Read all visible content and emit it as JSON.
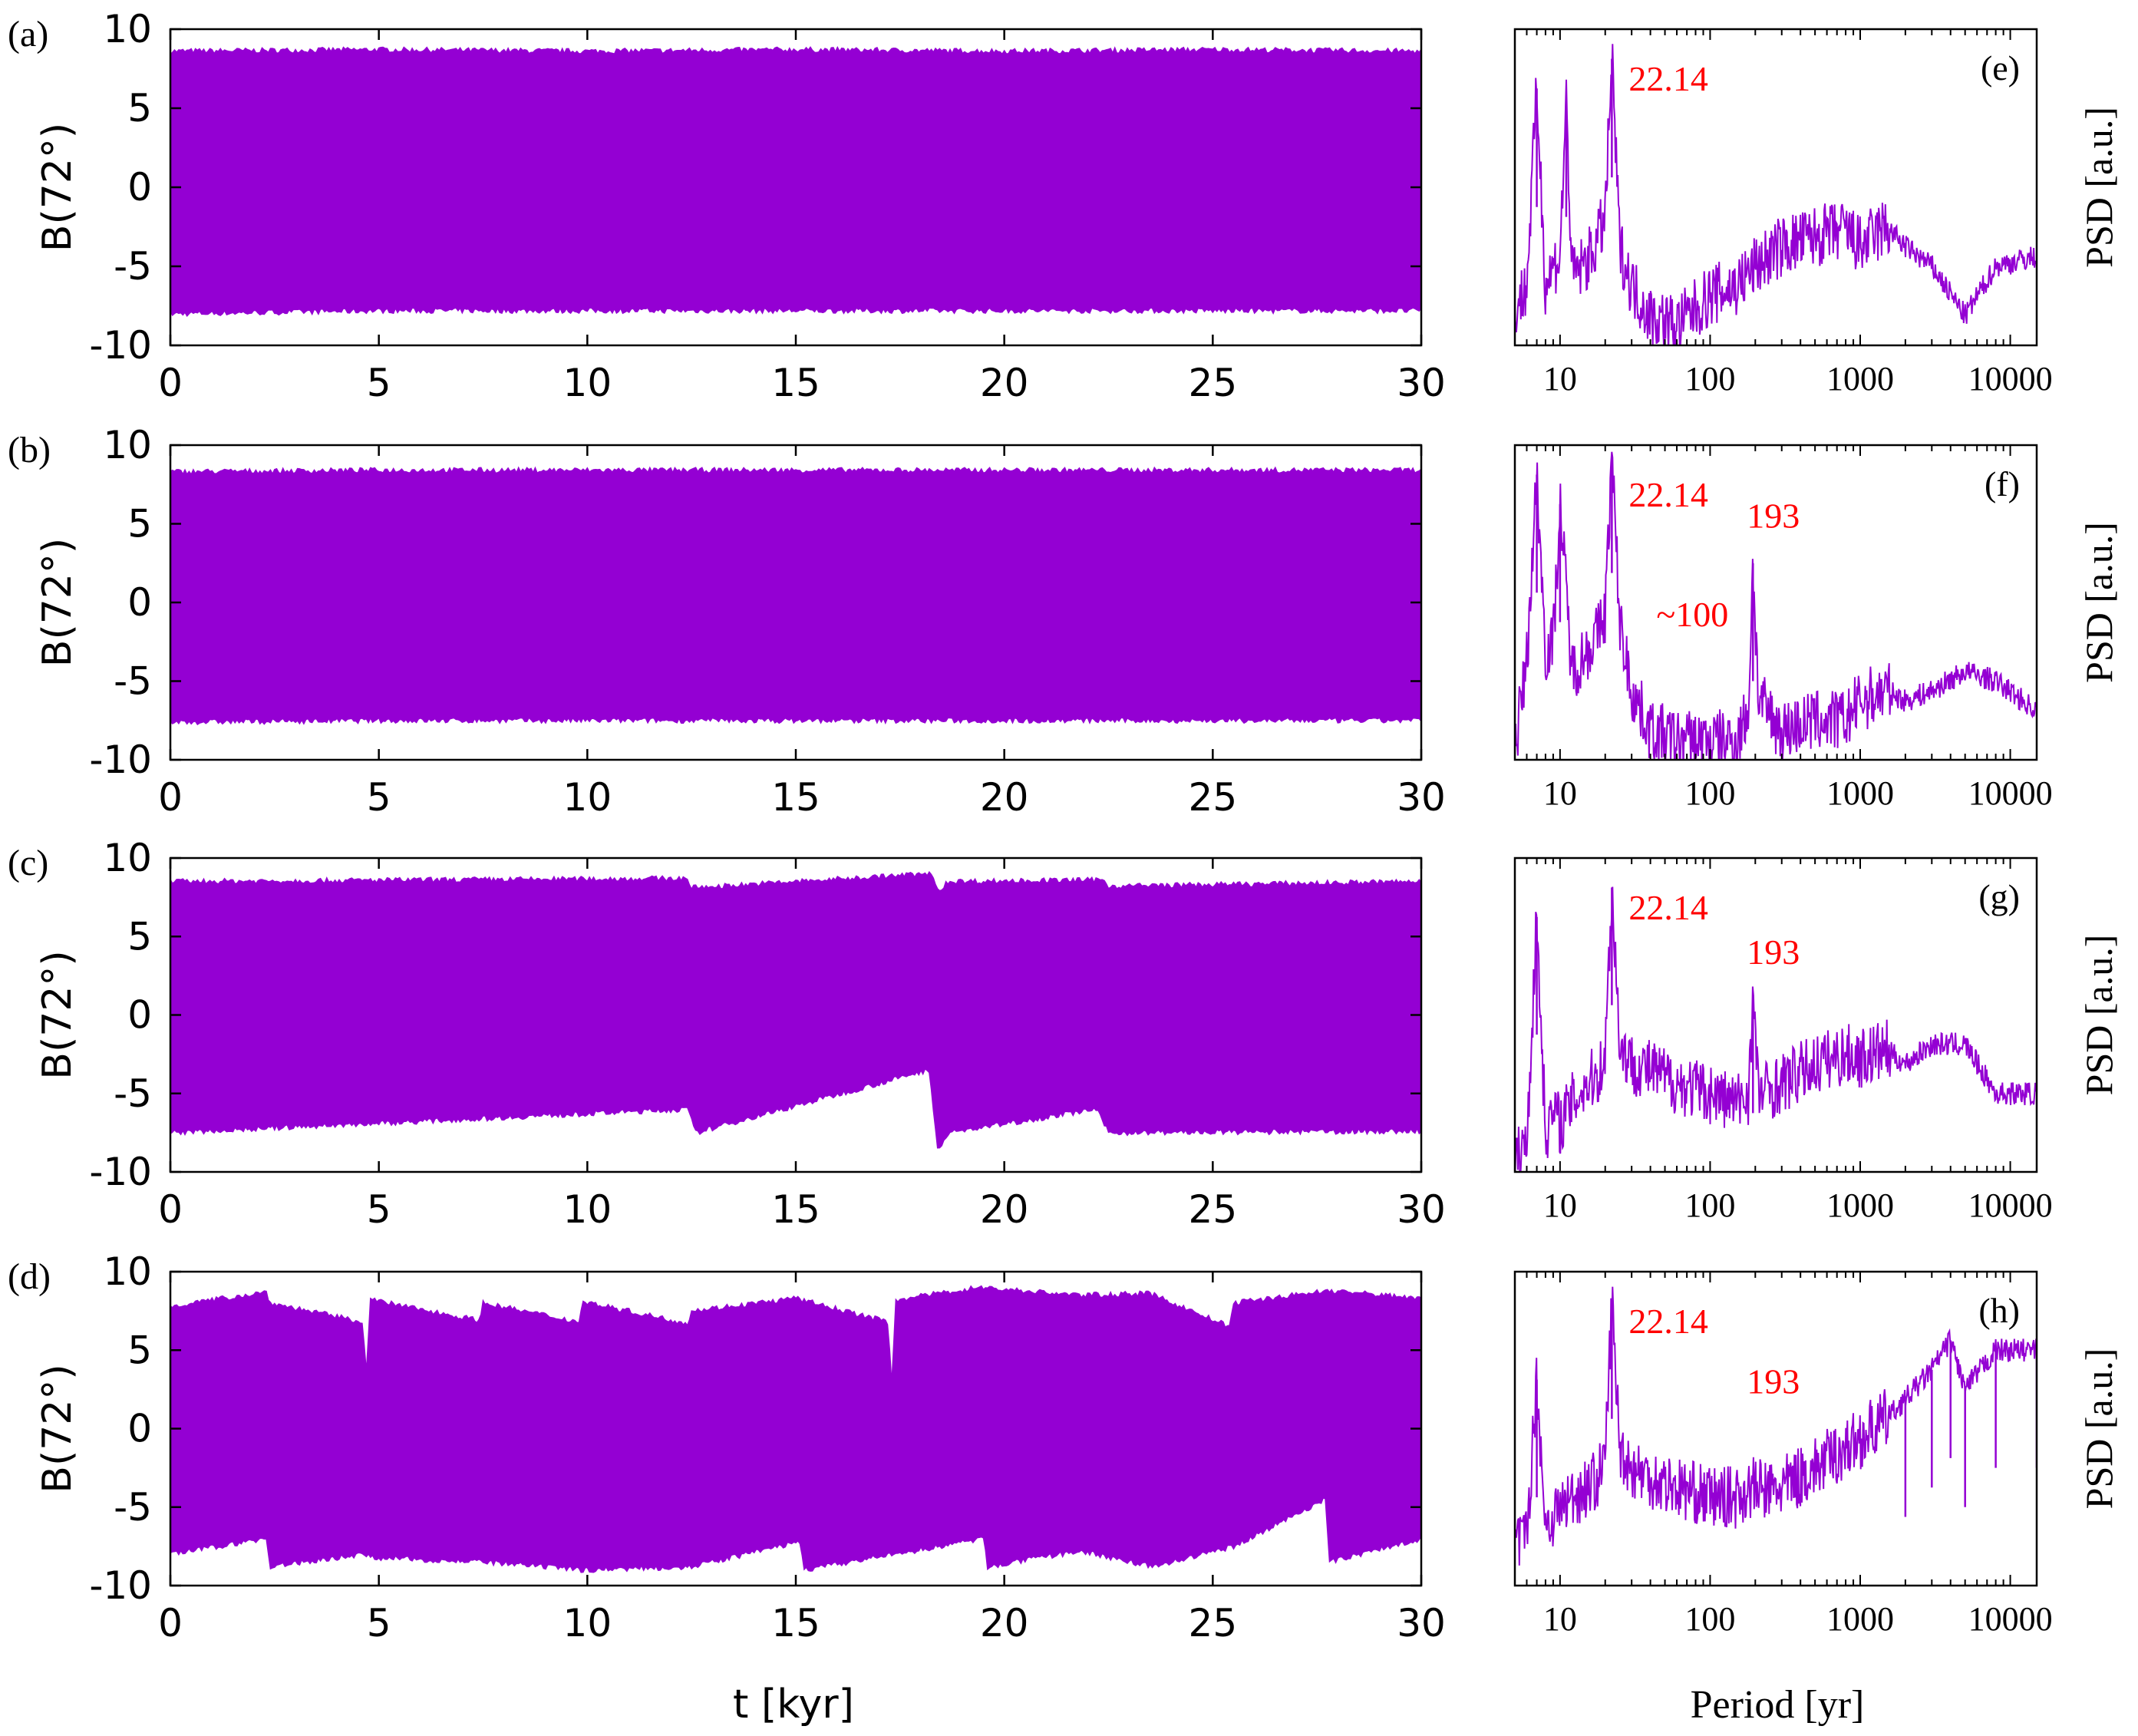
{
  "colors": {
    "signal": "#9400d3",
    "annotation": "#ff0000",
    "axis": "#000000",
    "background": "#ffffff"
  },
  "xlabel_time": "t [kyr]",
  "xlabel_period": "Period [yr]",
  "chart_data": [
    {
      "type": "line",
      "panel_label": "(a)",
      "ylabel": "B(72°)",
      "xlabel": "t [kyr]",
      "xlim": [
        0,
        30
      ],
      "ylim": [
        -10,
        10
      ],
      "xticks": [
        "0",
        "5",
        "10",
        "15",
        "20",
        "25",
        "30"
      ],
      "yticks": [
        "10",
        "5",
        "0",
        "-5",
        "-10"
      ],
      "series": [
        {
          "envelope_upper": [
            [
              0,
              8.6
            ],
            [
              5,
              8.7
            ],
            [
              10,
              8.6
            ],
            [
              15,
              8.7
            ],
            [
              20,
              8.6
            ],
            [
              25,
              8.7
            ],
            [
              30,
              8.6
            ]
          ],
          "envelope_lower": [
            [
              0,
              -8.0
            ],
            [
              5,
              -7.8
            ],
            [
              10,
              -7.8
            ],
            [
              15,
              -7.8
            ],
            [
              20,
              -7.8
            ],
            [
              25,
              -7.8
            ],
            [
              30,
              -7.8
            ]
          ]
        }
      ]
    },
    {
      "type": "line",
      "panel_label": "(b)",
      "ylabel": "B(72°)",
      "xlabel": "t [kyr]",
      "xlim": [
        0,
        30
      ],
      "ylim": [
        -10,
        10
      ],
      "xticks": [
        "0",
        "5",
        "10",
        "15",
        "20",
        "25",
        "30"
      ],
      "yticks": [
        "10",
        "5",
        "0",
        "-5",
        "-10"
      ],
      "series": [
        {
          "envelope_upper": [
            [
              0,
              8.3
            ],
            [
              5,
              8.4
            ],
            [
              10,
              8.4
            ],
            [
              15,
              8.4
            ],
            [
              20,
              8.4
            ],
            [
              25,
              8.4
            ],
            [
              30,
              8.4
            ]
          ],
          "envelope_lower": [
            [
              0,
              -7.6
            ],
            [
              5,
              -7.5
            ],
            [
              10,
              -7.5
            ],
            [
              15,
              -7.5
            ],
            [
              20,
              -7.5
            ],
            [
              25,
              -7.5
            ],
            [
              30,
              -7.5
            ]
          ]
        }
      ]
    },
    {
      "type": "line",
      "panel_label": "(c)",
      "ylabel": "B(72°)",
      "xlabel": "t [kyr]",
      "xlim": [
        0,
        30
      ],
      "ylim": [
        -10,
        10
      ],
      "xticks": [
        "0",
        "5",
        "10",
        "15",
        "20",
        "25",
        "30"
      ],
      "yticks": [
        "10",
        "5",
        "0",
        "-5",
        "-10"
      ],
      "series": [
        {
          "envelope_upper": [
            [
              0,
              8.5
            ],
            [
              12.4,
              8.7
            ],
            [
              12.5,
              8.1
            ],
            [
              18.2,
              9.0
            ],
            [
              18.5,
              7.8
            ],
            [
              18.6,
              8.5
            ],
            [
              22.4,
              8.6
            ],
            [
              22.5,
              8.2
            ],
            [
              30,
              8.5
            ]
          ],
          "envelope_lower": [
            [
              0,
              -7.5
            ],
            [
              12.4,
              -6.0
            ],
            [
              12.6,
              -7.5
            ],
            [
              18.2,
              -3.5
            ],
            [
              18.4,
              -8.5
            ],
            [
              18.7,
              -7.5
            ],
            [
              22.2,
              -6.0
            ],
            [
              22.5,
              -7.5
            ],
            [
              30,
              -7.4
            ]
          ]
        }
      ]
    },
    {
      "type": "line",
      "panel_label": "(d)",
      "ylabel": "B(72°)",
      "xlabel": "t [kyr]",
      "xlim": [
        0,
        30
      ],
      "ylim": [
        -10,
        10
      ],
      "xticks": [
        "0",
        "5",
        "10",
        "15",
        "20",
        "25",
        "30"
      ],
      "yticks": [
        "10",
        "5",
        "0",
        "-5",
        "-10"
      ],
      "series": [
        {
          "envelope_upper": [
            [
              0,
              7.8
            ],
            [
              2.3,
              8.7
            ],
            [
              2.4,
              8.0
            ],
            [
              4.6,
              6.8
            ],
            [
              4.7,
              3.8
            ],
            [
              4.8,
              8.2
            ],
            [
              7.4,
              6.9
            ],
            [
              7.5,
              8.0
            ],
            [
              9.8,
              6.8
            ],
            [
              9.9,
              8.1
            ],
            [
              12.4,
              6.7
            ],
            [
              12.5,
              7.5
            ],
            [
              15.0,
              8.3
            ],
            [
              17.2,
              6.8
            ],
            [
              17.3,
              3.0
            ],
            [
              17.4,
              8.2
            ],
            [
              19.4,
              9.0
            ],
            [
              21.8,
              8.5
            ],
            [
              23.5,
              8.6
            ],
            [
              25.4,
              6.5
            ],
            [
              25.5,
              8.0
            ],
            [
              27.8,
              8.8
            ],
            [
              30,
              8.3
            ]
          ],
          "envelope_lower": [
            [
              0,
              -8.0
            ],
            [
              2.3,
              -7.0
            ],
            [
              2.4,
              -8.8
            ],
            [
              4.6,
              -8.0
            ],
            [
              4.8,
              -8.2
            ],
            [
              7.5,
              -8.5
            ],
            [
              9.9,
              -9.0
            ],
            [
              12.5,
              -8.8
            ],
            [
              15.1,
              -7.2
            ],
            [
              15.2,
              -9.0
            ],
            [
              17.4,
              -8.0
            ],
            [
              19.5,
              -7.0
            ],
            [
              19.6,
              -8.8
            ],
            [
              21.8,
              -7.8
            ],
            [
              23.6,
              -8.8
            ],
            [
              25.5,
              -7.5
            ],
            [
              27.7,
              -4.5
            ],
            [
              27.8,
              -8.5
            ],
            [
              30,
              -7.0
            ]
          ]
        }
      ]
    },
    {
      "type": "line",
      "panel_label": "(e)",
      "ylabel": "PSD [a.u.]",
      "xlabel": "Period [yr]",
      "xscale": "log",
      "xlim": [
        5,
        15000
      ],
      "xticks": [
        "10",
        "100",
        "1000",
        "10000"
      ],
      "annotations": [
        {
          "text": "22.14",
          "x": 22.14
        }
      ],
      "series": [
        {
          "x": [
            5,
            6,
            7,
            8,
            9,
            10,
            11,
            12,
            14,
            16,
            18,
            20,
            22.14,
            25,
            30,
            40,
            60,
            100,
            150,
            200,
            300,
            500,
            800,
            1000,
            1500,
            2000,
            3000,
            5000,
            8000,
            15000
          ],
          "y": [
            -8.2,
            -7.0,
            3.0,
            -7.0,
            -6.0,
            -5.5,
            2.5,
            -6.5,
            -6.0,
            -5.5,
            -4.5,
            -3.5,
            4.5,
            -5.0,
            -7.0,
            -8.5,
            -9.0,
            -7.5,
            -7.0,
            -6.0,
            -5.0,
            -4.5,
            -4.2,
            -5.0,
            -4.0,
            -5.0,
            -6.0,
            -8.5,
            -6.0,
            -5.5
          ]
        }
      ]
    },
    {
      "type": "line",
      "panel_label": "(f)",
      "ylabel": "PSD [a.u.]",
      "xlabel": "Period [yr]",
      "xscale": "log",
      "xlim": [
        5,
        15000
      ],
      "xticks": [
        "10",
        "100",
        "1000",
        "10000"
      ],
      "annotations": [
        {
          "text": "22.14",
          "x": 22.14
        },
        {
          "text": "193",
          "x": 193
        },
        {
          "text": "~100",
          "x": 100
        }
      ],
      "series": [
        {
          "x": [
            5,
            6,
            7,
            8,
            9,
            10,
            12,
            15,
            18,
            20,
            22.14,
            25,
            30,
            40,
            60,
            100,
            150,
            180,
            193,
            210,
            300,
            500,
            800,
            1000,
            1500,
            2000,
            3000,
            5000,
            8000,
            15000
          ],
          "y": [
            -9.5,
            -5.0,
            4.5,
            -4.5,
            -4.0,
            3.0,
            -5.5,
            -4.5,
            -3.5,
            -2.5,
            5.5,
            -3.0,
            -6.5,
            -8.5,
            -9.0,
            -9.0,
            -9.0,
            -7.5,
            0.0,
            -7.0,
            -8.5,
            -8.0,
            -8.0,
            -7.0,
            -6.5,
            -7.0,
            -6.5,
            -5.5,
            -6.0,
            -7.5
          ]
        }
      ]
    },
    {
      "type": "line",
      "panel_label": "(g)",
      "ylabel": "PSD [a.u.]",
      "xlabel": "Period [yr]",
      "xscale": "log",
      "xlim": [
        5,
        15000
      ],
      "xticks": [
        "10",
        "100",
        "1000",
        "10000"
      ],
      "annotations": [
        {
          "text": "22.14",
          "x": 22.14
        },
        {
          "text": "193",
          "x": 193
        }
      ],
      "series": [
        {
          "x": [
            5,
            6,
            7,
            8,
            9,
            10,
            12,
            15,
            18,
            20,
            22.14,
            25,
            30,
            40,
            60,
            100,
            150,
            180,
            193,
            210,
            300,
            500,
            800,
            1000,
            1500,
            2000,
            3000,
            5000,
            8000,
            15000
          ],
          "y": [
            -9.5,
            -8.5,
            3.0,
            -8.0,
            -7.0,
            -7.5,
            -6.5,
            -5.5,
            -5.0,
            -4.0,
            4.5,
            -3.5,
            -4.5,
            -4.8,
            -5.5,
            -6.0,
            -6.5,
            -6.0,
            -1.0,
            -6.0,
            -5.5,
            -4.5,
            -4.0,
            -4.2,
            -3.8,
            -4.5,
            -3.5,
            -3.5,
            -6.0,
            -6.0
          ]
        }
      ]
    },
    {
      "type": "line",
      "panel_label": "(h)",
      "ylabel": "PSD [a.u.]",
      "xlabel": "Period [yr]",
      "xscale": "log",
      "xlim": [
        5,
        15000
      ],
      "xticks": [
        "10",
        "100",
        "1000",
        "10000"
      ],
      "annotations": [
        {
          "text": "22.14",
          "x": 22.14
        },
        {
          "text": "193",
          "x": 193
        }
      ],
      "series": [
        {
          "x": [
            5,
            6,
            7,
            8,
            9,
            10,
            12,
            15,
            18,
            20,
            22.14,
            25,
            30,
            40,
            60,
            100,
            150,
            193,
            250,
            300,
            500,
            800,
            1000,
            1500,
            2000,
            3000,
            4000,
            5000,
            8000,
            15000
          ],
          "y": [
            -8.0,
            -7.5,
            0.5,
            -7.0,
            -6.5,
            -6.0,
            -5.5,
            -5.0,
            -4.5,
            -3.5,
            4.5,
            -3.0,
            -4.0,
            -4.5,
            -5.0,
            -5.5,
            -5.5,
            -5.0,
            -5.2,
            -5.0,
            -4.0,
            -3.0,
            -2.5,
            -1.5,
            -0.5,
            1.0,
            2.5,
            0.0,
            2.0,
            2.0
          ]
        }
      ]
    }
  ]
}
